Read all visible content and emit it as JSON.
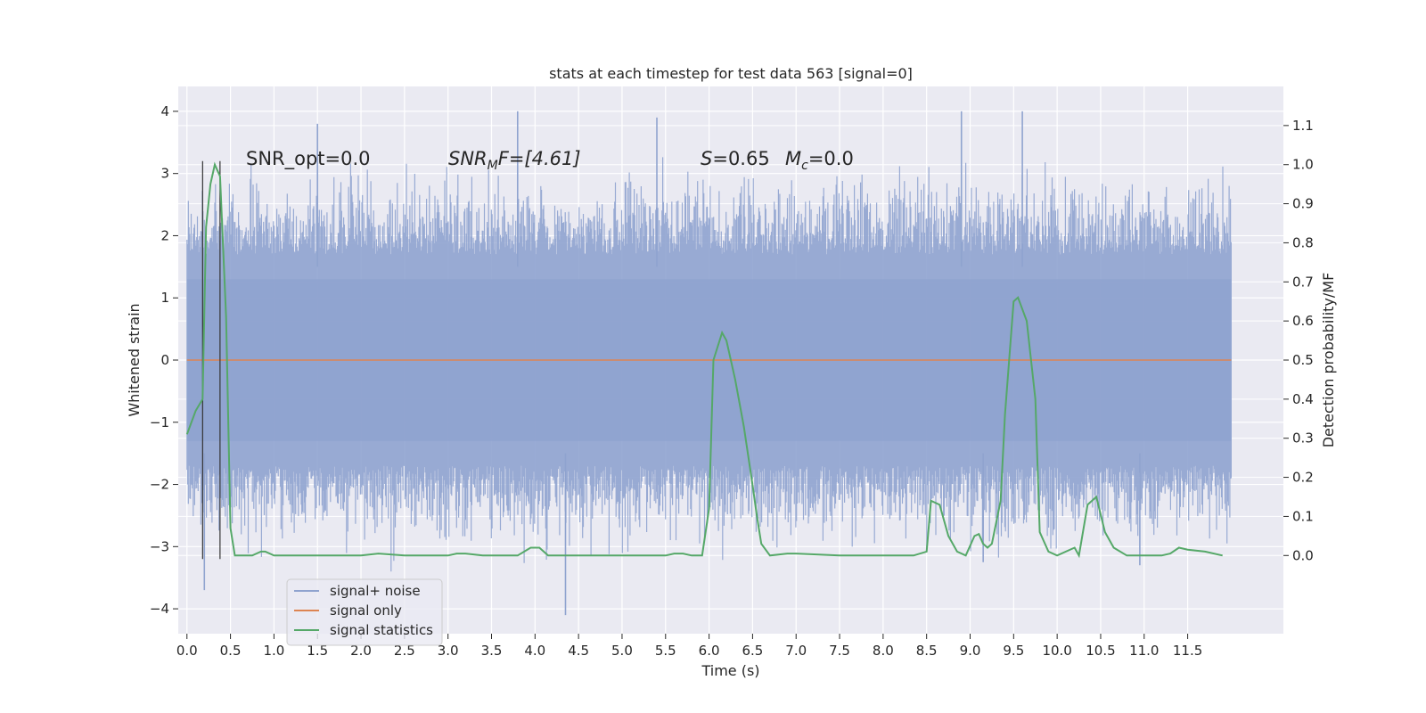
{
  "chart_data": {
    "type": "line",
    "title": "stats at each timestep for test data 563 [signal=0]",
    "xlabel": "Time (s)",
    "ylabel": "Whitened strain",
    "y2label": "Detection probability/MF",
    "xlim": [
      -0.1,
      12.6
    ],
    "ylim": [
      -4.4,
      4.4
    ],
    "y2lim": [
      -0.2,
      1.2
    ],
    "xticks": [
      0.0,
      0.5,
      1.0,
      1.5,
      2.0,
      2.5,
      3.0,
      3.5,
      4.0,
      4.5,
      5.0,
      5.5,
      6.0,
      6.5,
      7.0,
      7.5,
      8.0,
      8.5,
      9.0,
      9.5,
      10.0,
      10.5,
      11.0,
      11.5
    ],
    "xtick_labels": [
      "0.0",
      "0.5",
      "1.0",
      "1.5",
      "2.0",
      "2.5",
      "3.0",
      "3.5",
      "4.0",
      "4.5",
      "5.0",
      "5.5",
      "6.0",
      "6.5",
      "7.0",
      "7.5",
      "8.0",
      "8.5",
      "9.0",
      "9.5",
      "10.0",
      "10.5",
      "11.0",
      "11.5"
    ],
    "yticks": [
      4,
      3,
      2,
      1,
      0,
      -1,
      -2,
      -3,
      -4
    ],
    "ytick_labels": [
      "4",
      "3",
      "2",
      "1",
      "0",
      "−1",
      "−2",
      "−3",
      "−4"
    ],
    "y2ticks": [
      1.1,
      1.0,
      0.9,
      0.8,
      0.7,
      0.6,
      0.5,
      0.4,
      0.3,
      0.2,
      0.1,
      0.0
    ],
    "y2tick_labels": [
      "1.1",
      "1.0",
      "0.9",
      "0.8",
      "0.7",
      "0.6",
      "0.5",
      "0.4",
      "0.3",
      "0.2",
      "0.1",
      "0.0"
    ],
    "grid": true,
    "legend_position": "bottom-left",
    "annotations": {
      "snr_opt": "SNR_opt=0.0",
      "snr_mf_prefix": "SNR",
      "snr_mf_sub": "M",
      "snr_mf_suffix": "F=[4.61]",
      "s_sym": "S",
      "s_val": "=0.65",
      "mc_sym": "M",
      "mc_sub": "c",
      "mc_val": "=0.0"
    },
    "vertical_lines_x": [
      0.18,
      0.38
    ],
    "series": [
      {
        "name": "signal+ noise",
        "color": "#8fa3cf",
        "axis": "left",
        "x_range": [
          0.0,
          12.0
        ],
        "core_band": [
          -1.3,
          1.3
        ],
        "spike_peaks": [
          {
            "x": 1.5,
            "y": 3.8
          },
          {
            "x": 3.8,
            "y": 4.0
          },
          {
            "x": 5.4,
            "y": 3.9
          },
          {
            "x": 8.9,
            "y": 4.0
          },
          {
            "x": 9.6,
            "y": 4.0
          },
          {
            "x": 0.2,
            "y": -3.7
          },
          {
            "x": 4.35,
            "y": -4.1
          },
          {
            "x": 9.15,
            "y": -3.25
          },
          {
            "x": 10.95,
            "y": -3.3
          }
        ]
      },
      {
        "name": "signal only",
        "color": "#dd8452",
        "axis": "left",
        "x": [
          0.0,
          12.0
        ],
        "y": [
          0.0,
          0.0
        ]
      },
      {
        "name": "signal statistics",
        "color": "#55a868",
        "axis": "right",
        "x": [
          0.0,
          0.1,
          0.18,
          0.22,
          0.27,
          0.32,
          0.38,
          0.45,
          0.5,
          0.55,
          0.62,
          0.75,
          0.85,
          0.9,
          1.0,
          1.5,
          1.8,
          2.0,
          2.2,
          2.5,
          2.8,
          3.0,
          3.1,
          3.2,
          3.4,
          3.8,
          3.95,
          4.05,
          4.15,
          4.3,
          4.6,
          5.0,
          5.5,
          5.6,
          5.7,
          5.8,
          5.92,
          6.0,
          6.05,
          6.15,
          6.2,
          6.3,
          6.4,
          6.5,
          6.55,
          6.6,
          6.7,
          6.9,
          7.0,
          7.5,
          8.0,
          8.2,
          8.35,
          8.5,
          8.55,
          8.65,
          8.75,
          8.85,
          8.95,
          9.05,
          9.1,
          9.15,
          9.2,
          9.25,
          9.35,
          9.4,
          9.5,
          9.55,
          9.65,
          9.75,
          9.8,
          9.9,
          10.0,
          10.1,
          10.2,
          10.25,
          10.35,
          10.45,
          10.55,
          10.65,
          10.8,
          11.0,
          11.2,
          11.3,
          11.4,
          11.5,
          11.7,
          11.9
        ],
        "y": [
          0.31,
          0.37,
          0.4,
          0.84,
          0.95,
          1.0,
          0.97,
          0.61,
          0.07,
          0.0,
          0.0,
          0.0,
          0.01,
          0.01,
          0.0,
          0.0,
          0.0,
          0.0,
          0.005,
          0.0,
          0.0,
          0.0,
          0.005,
          0.005,
          0.0,
          0.0,
          0.02,
          0.02,
          0.0,
          0.0,
          0.0,
          0.0,
          0.0,
          0.005,
          0.005,
          0.0,
          0.0,
          0.12,
          0.5,
          0.57,
          0.55,
          0.45,
          0.33,
          0.18,
          0.1,
          0.03,
          0.0,
          0.005,
          0.005,
          0.0,
          0.0,
          0.0,
          0.0,
          0.01,
          0.14,
          0.13,
          0.05,
          0.01,
          0.0,
          0.05,
          0.055,
          0.03,
          0.02,
          0.03,
          0.14,
          0.36,
          0.65,
          0.66,
          0.6,
          0.4,
          0.06,
          0.01,
          0.0,
          0.01,
          0.02,
          0.0,
          0.13,
          0.15,
          0.06,
          0.02,
          0.0,
          0.0,
          0.0,
          0.005,
          0.02,
          0.015,
          0.01,
          0.0
        ]
      }
    ]
  }
}
